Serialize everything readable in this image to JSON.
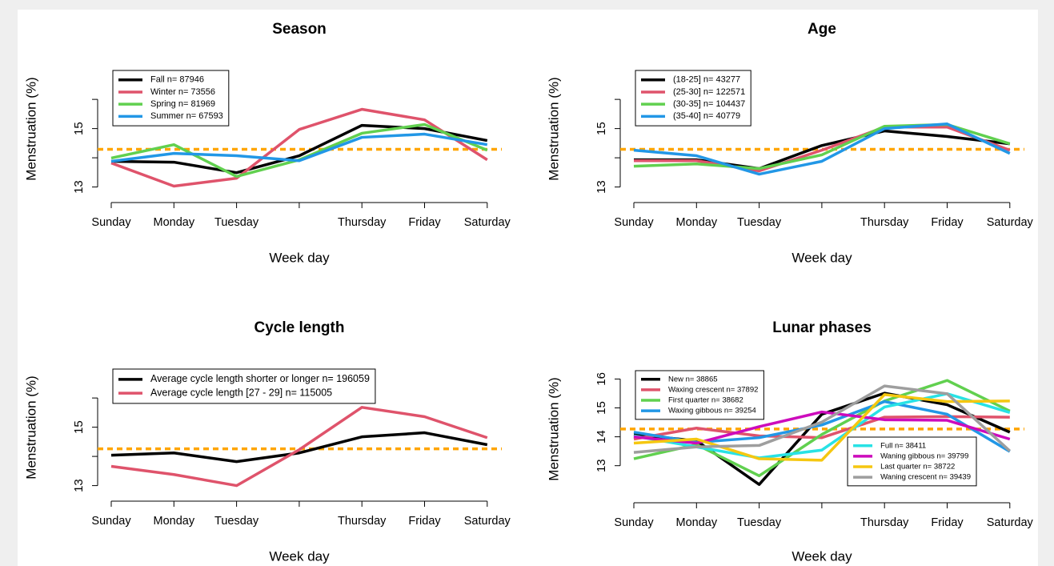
{
  "chart_data": [
    {
      "type": "line",
      "title": "Season",
      "xlabel": "Week day",
      "ylabel": "Menstruation (%)",
      "categories": [
        "Sunday",
        "Monday",
        "Tuesday",
        null,
        "Thursday",
        "Friday",
        "Saturday"
      ],
      "ylim": [
        12.55,
        17.1
      ],
      "yticks": [
        13,
        15
      ],
      "minor_yticks": [
        14,
        16
      ],
      "hline": 14.29,
      "hline_color": "#FFA500",
      "legend": "topleft",
      "series": [
        {
          "name": "Fall n= 87946",
          "color": "#000000",
          "values": [
            13.88,
            13.85,
            13.49,
            14.07,
            15.11,
            15.0,
            14.59
          ]
        },
        {
          "name": "Winter n= 73556",
          "color": "#DF536B",
          "values": [
            13.82,
            13.03,
            13.3,
            14.97,
            15.66,
            15.3,
            13.93
          ]
        },
        {
          "name": "Spring n= 81969",
          "color": "#61D04F",
          "values": [
            13.99,
            14.45,
            13.36,
            13.93,
            14.84,
            15.14,
            14.26
          ]
        },
        {
          "name": "Summer n= 67593",
          "color": "#2297E6",
          "values": [
            13.88,
            14.15,
            14.07,
            13.9,
            14.7,
            14.81,
            14.45
          ]
        }
      ]
    },
    {
      "type": "line",
      "title": "Age",
      "xlabel": "Week day",
      "ylabel": "Menstruation (%)",
      "categories": [
        "Sunday",
        "Monday",
        "Tuesday",
        null,
        "Thursday",
        "Friday",
        "Saturday"
      ],
      "ylim": [
        12.55,
        17.1
      ],
      "yticks": [
        13,
        15
      ],
      "minor_yticks": [
        14,
        16
      ],
      "hline": 14.29,
      "hline_color": "#FFA500",
      "legend": "topleft",
      "series": [
        {
          "name": "(18-25] n= 43277",
          "color": "#000000",
          "values": [
            13.93,
            13.93,
            13.63,
            14.42,
            14.92,
            14.73,
            14.48
          ]
        },
        {
          "name": "(25-30] n= 122571",
          "color": "#DF536B",
          "values": [
            13.9,
            13.9,
            13.55,
            14.26,
            15.05,
            15.05,
            14.26
          ]
        },
        {
          "name": "(30-35] n= 104437",
          "color": "#61D04F",
          "values": [
            13.71,
            13.79,
            13.63,
            14.1,
            15.08,
            15.14,
            14.48
          ]
        },
        {
          "name": "(35-40] n= 40779",
          "color": "#2297E6",
          "values": [
            14.26,
            14.07,
            13.44,
            13.88,
            15.0,
            15.16,
            14.15
          ]
        }
      ]
    },
    {
      "type": "line",
      "title": "Cycle length",
      "xlabel": "Week day",
      "ylabel": "Menstruation (%)",
      "categories": [
        "Sunday",
        "Monday",
        "Tuesday",
        null,
        "Thursday",
        "Friday",
        "Saturday"
      ],
      "ylim": [
        12.55,
        17.1
      ],
      "yticks": [
        13,
        15
      ],
      "minor_yticks": [
        14,
        16
      ],
      "hline": 14.26,
      "hline_color": "#FFA500",
      "legend": "topleft",
      "series": [
        {
          "name": "Average cycle length shorter or longer n= 196059",
          "color": "#000000",
          "values": [
            14.04,
            14.12,
            13.82,
            14.12,
            14.67,
            14.81,
            14.4
          ]
        },
        {
          "name": "Average cycle length [27 - 29] n= 115005",
          "color": "#DF536B",
          "values": [
            13.66,
            13.38,
            13.0,
            14.23,
            15.68,
            15.36,
            14.64
          ]
        }
      ]
    },
    {
      "type": "line",
      "title": "Lunar phases",
      "xlabel": "Week day",
      "ylabel": "Menstruation (%)",
      "categories": [
        "Sunday",
        "Monday",
        "Tuesday",
        null,
        "Thursday",
        "Friday",
        "Saturday"
      ],
      "ylim": [
        11.8,
        16.4
      ],
      "yticks": [
        13,
        14,
        15,
        16
      ],
      "hline": 14.27,
      "hline_color": "#FFA500",
      "legend": [
        "topleft",
        "bottomright"
      ],
      "series": [
        {
          "name": "New n= 38865",
          "color": "#000000",
          "values": [
            14.08,
            13.86,
            12.35,
            14.78,
            15.51,
            15.11,
            14.16
          ]
        },
        {
          "name": "Waxing crescent n= 37892",
          "color": "#DF536B",
          "values": [
            13.92,
            14.3,
            14.03,
            13.97,
            14.68,
            14.7,
            14.68
          ]
        },
        {
          "name": "First quarter n= 38682",
          "color": "#61D04F",
          "values": [
            13.24,
            13.73,
            12.65,
            14.08,
            15.24,
            15.95,
            14.89
          ]
        },
        {
          "name": "Waxing gibbous n= 39254",
          "color": "#2297E6",
          "values": [
            14.16,
            13.81,
            13.97,
            14.41,
            15.22,
            14.78,
            13.49
          ]
        },
        {
          "name": "Full n= 38411",
          "color": "#28E2E5",
          "values": [
            14.03,
            13.65,
            13.27,
            13.54,
            15.03,
            15.49,
            14.84
          ]
        },
        {
          "name": "Waning gibbous n= 39799",
          "color": "#CD0BBC",
          "values": [
            14.0,
            13.78,
            14.35,
            14.86,
            14.59,
            14.57,
            13.92
          ]
        },
        {
          "name": "Last quarter n= 38722",
          "color": "#F5C710",
          "values": [
            13.78,
            13.92,
            13.24,
            13.19,
            15.46,
            15.22,
            15.24
          ]
        },
        {
          "name": "Waning crescent n= 39439",
          "color": "#9E9E9E",
          "values": [
            13.46,
            13.65,
            13.7,
            14.51,
            15.76,
            15.49,
            13.51
          ]
        }
      ]
    }
  ]
}
